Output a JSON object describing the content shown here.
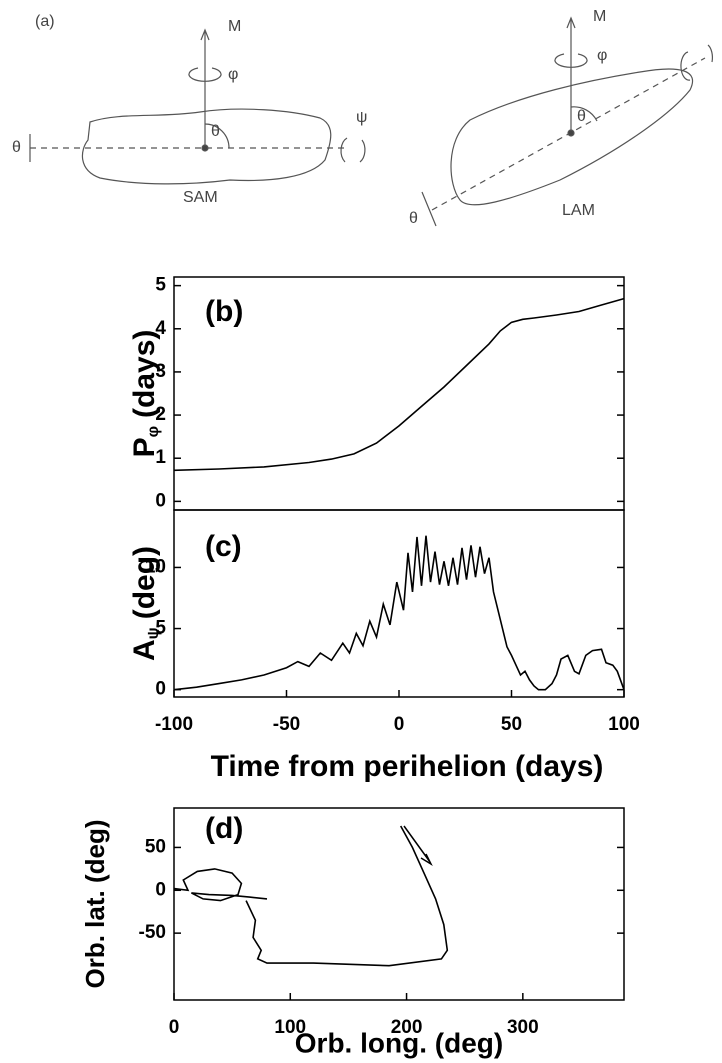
{
  "diagram": {
    "label": "(a)",
    "sam": {
      "axis": "M",
      "spin": "φ",
      "angle": "θ",
      "wobble": "θ",
      "nutation": "ψ",
      "name": "SAM"
    },
    "lam": {
      "axis": "M",
      "spin": "φ",
      "angle": "θ",
      "wobble": "θ",
      "name": "LAM"
    }
  },
  "chart_data": [
    {
      "type": "line",
      "title": "(b)",
      "ylabel": "P",
      "ylabel_sub": "φ",
      "ylabel_unit": "(days)",
      "x": [
        -100,
        -80,
        -60,
        -40,
        -30,
        -20,
        -10,
        0,
        10,
        20,
        30,
        40,
        45,
        50,
        55,
        60,
        70,
        80,
        90,
        100
      ],
      "series": [
        {
          "color": "#000000",
          "values": [
            0.72,
            0.75,
            0.8,
            0.9,
            0.98,
            1.1,
            1.35,
            1.75,
            2.2,
            2.65,
            3.15,
            3.65,
            3.95,
            4.15,
            4.22,
            4.25,
            4.32,
            4.4,
            4.55,
            4.7
          ]
        }
      ],
      "xlim": [
        -100,
        100
      ],
      "ylim": [
        -0.2,
        5.2
      ],
      "yticks": [
        0,
        1,
        2,
        3,
        4,
        5
      ]
    },
    {
      "type": "line",
      "title": "(c)",
      "ylabel": "A",
      "ylabel_sub": "ψ",
      "ylabel_unit": "(deg)",
      "xlabel": "Time from perihelion (days)",
      "x": [
        -100,
        -90,
        -80,
        -70,
        -60,
        -50,
        -45,
        -40,
        -35,
        -30,
        -25,
        -22,
        -19,
        -16,
        -13,
        -10,
        -7,
        -4,
        -1,
        2,
        4,
        6,
        8,
        10,
        12,
        14,
        16,
        18,
        20,
        22,
        24,
        26,
        28,
        30,
        32,
        34,
        36,
        38,
        40,
        42,
        44,
        46,
        48,
        50,
        52,
        54,
        56,
        58,
        60,
        62,
        65,
        68,
        70,
        72,
        75,
        78,
        80,
        83,
        86,
        90,
        92,
        95,
        97,
        100
      ],
      "series": [
        {
          "color": "#000000",
          "values": [
            0,
            0.2,
            0.5,
            0.8,
            1.2,
            1.8,
            2.3,
            1.9,
            3.0,
            2.4,
            3.8,
            3.0,
            4.6,
            3.6,
            5.6,
            4.3,
            7.0,
            5.3,
            8.8,
            6.5,
            11.2,
            8.0,
            12.5,
            8.5,
            12.6,
            8.8,
            11.3,
            8.6,
            10.5,
            8.5,
            10.8,
            8.6,
            11.6,
            9.0,
            11.8,
            9.2,
            11.7,
            9.5,
            10.8,
            8.0,
            6.5,
            5.0,
            3.5,
            2.8,
            2.0,
            1.2,
            1.5,
            0.8,
            0.3,
            0,
            0,
            0.5,
            1.2,
            2.5,
            2.8,
            1.5,
            1.3,
            2.8,
            3.2,
            3.3,
            2.2,
            2.0,
            1.5,
            0
          ]
        }
      ],
      "xlim": [
        -100,
        100
      ],
      "ylim": [
        -0.6,
        14.7
      ],
      "yticks": [
        0,
        5,
        10
      ],
      "xticks": [
        -100,
        -50,
        0,
        50,
        100
      ]
    },
    {
      "type": "line",
      "title": "(d)",
      "ylabel": "Orb. lat. (deg)",
      "xlabel": "Orb. long. (deg)",
      "x": [
        0,
        12,
        8,
        20,
        35,
        50,
        58,
        55,
        40,
        25,
        15,
        30,
        50,
        65,
        80,
        null,
        62,
        70,
        68,
        75,
        72,
        80,
        120,
        185,
        230,
        235,
        232,
        225,
        215,
        205,
        195
      ],
      "series": [
        {
          "color": "#000000",
          "values": [
            2,
            0,
            12,
            22,
            25,
            20,
            8,
            -5,
            -12,
            -10,
            -3,
            -5,
            -6,
            -8,
            -10,
            null,
            -12,
            -35,
            -55,
            -70,
            -80,
            -85,
            -85,
            -88,
            -80,
            -70,
            -40,
            -10,
            20,
            50,
            75
          ]
        }
      ],
      "xlim": [
        0,
        387
      ],
      "ylim": [
        -128,
        96
      ],
      "yticks": [
        -50,
        0,
        50
      ],
      "xticks": [
        0,
        100,
        200,
        300
      ]
    }
  ]
}
